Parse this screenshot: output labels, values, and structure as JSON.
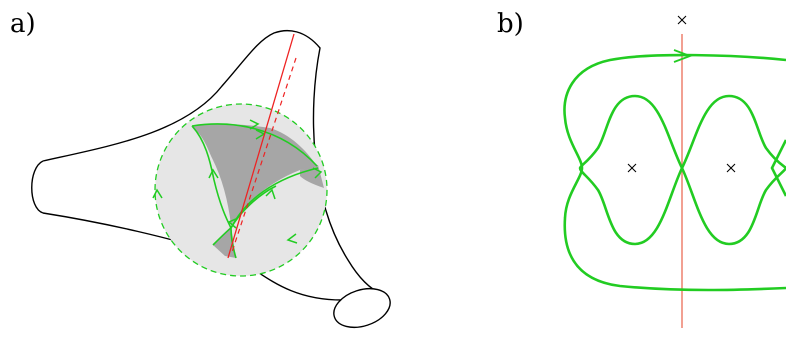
{
  "panels": [
    {
      "id": "a",
      "label": "a)"
    },
    {
      "id": "b",
      "label": "b)"
    }
  ],
  "colors": {
    "outline": "#000000",
    "green": "#22cc22",
    "red": "#ee2222",
    "red_light": "#ee8877",
    "disk_light": "#e6e6e6",
    "region_dark": "#a6a6a6"
  },
  "markers": {
    "symbol": "×",
    "count_panel_b": 3
  }
}
